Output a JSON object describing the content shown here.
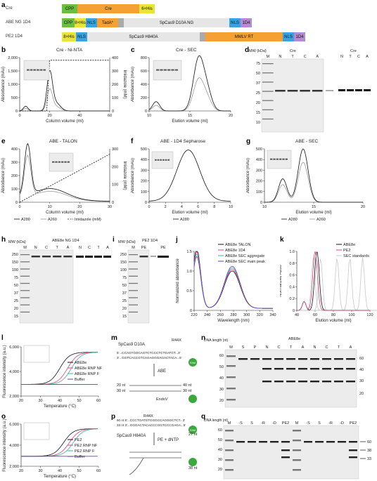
{
  "panels": {
    "a": "a",
    "b": "b",
    "c": "c",
    "d": "d",
    "e": "e",
    "f": "f",
    "g": "g",
    "h": "h",
    "i": "i",
    "j": "j",
    "k": "k",
    "l": "l",
    "m": "m",
    "n": "n",
    "o": "o",
    "p": "p",
    "q": "q"
  },
  "constructs": [
    {
      "name": "Cre",
      "domains": [
        {
          "label": "CPP",
          "color": "#6abf3e"
        },
        {
          "label": "Cre",
          "color": "#f5a033"
        },
        {
          "label": "6×His",
          "color": "#e8e43a"
        }
      ]
    },
    {
      "name": "ABE NG 1D4",
      "domains": [
        {
          "label": "CPP",
          "color": "#6abf3e"
        },
        {
          "label": "8×His",
          "color": "#e8e43a"
        },
        {
          "label": "NLS",
          "color": "#3aa2dc"
        },
        {
          "label": "TadA*",
          "color": "#f5a033"
        },
        {
          "label": "",
          "color": "#aaa"
        },
        {
          "label": "SpCas9 D10A NG",
          "color": "#e6e6e6"
        },
        {
          "label": "NLS",
          "color": "#3aa2dc"
        },
        {
          "label": "1D4",
          "color": "#b58ad0"
        }
      ]
    },
    {
      "name": "PE2 1D4",
      "domains": [
        {
          "label": "8×His",
          "color": "#e8e43a"
        },
        {
          "label": "NLS",
          "color": "#3aa2dc"
        },
        {
          "label": "SpCas9 H840A",
          "color": "#e6e6e6"
        },
        {
          "label": "",
          "color": "#aaa"
        },
        {
          "label": "MMLV RT",
          "color": "#f5a033"
        },
        {
          "label": "NLS",
          "color": "#3aa2dc"
        },
        {
          "label": "1D4",
          "color": "#b58ad0"
        }
      ]
    }
  ],
  "titles": {
    "b": "Cre - Ni-NTA",
    "c": "Cre - SEC",
    "d": "Cre",
    "e": "ABE - TALON",
    "f": "ABE - 1D4 Sepharose",
    "g": "ABE - SEC",
    "h": "ABE8e NG 1D4",
    "i": "PE2 1D4",
    "n": "ABE8e"
  },
  "axes": {
    "absorbance": "Absorbance (mAu)",
    "imidazole": "Imidazole (mM)",
    "column_volume": "Column volume (ml)",
    "elution_volume": "Elution volume (ml)",
    "mw": "MW (kDa)",
    "norm_abs": "Normalized absorbance",
    "wavelength": "Wavelength (nm)",
    "norm_a280": "Normalized A280",
    "fluor": "Fluorescence intensity (a.u.)",
    "temp": "Temperature (°C)",
    "dna_length": "DNA length (nt)"
  },
  "legends": {
    "a280": "A280",
    "a260": "A260",
    "imid": "Imidazole (mM)",
    "j": [
      "ABE8e TALON",
      "ABE8e 1D4",
      "ABE8e SEC aggregate",
      "ABE8e SEC main peak"
    ],
    "k": [
      "ABE8e",
      "PE2",
      "SEC standards"
    ],
    "l": [
      "ABE8e",
      "ABE8e RNP NF",
      "ABE8e RNP F",
      "Buffer"
    ],
    "o": [
      "PE2",
      "PE2 RNP NF",
      "PE2 RNP F",
      "Buffer"
    ]
  },
  "lanes": {
    "d": [
      "M",
      "N",
      "T",
      "C",
      "A",
      "N",
      "T",
      "C",
      "A"
    ],
    "h": [
      "M",
      "N",
      "C",
      "T",
      "A",
      "N",
      "C",
      "T",
      "A"
    ],
    "i": [
      "M",
      "PE",
      "PE"
    ],
    "n": [
      "M",
      "S",
      "P",
      "N",
      "C",
      "T",
      "A",
      "N",
      "C",
      "T",
      "A"
    ],
    "q": [
      "M",
      "-S",
      "S",
      "-R",
      "-D",
      "PE2",
      "M",
      "-S",
      "S",
      "-R",
      "-D",
      "PE2"
    ]
  },
  "mw_ladder": [
    "250",
    "150",
    "100",
    "75",
    "50",
    "37",
    "25",
    "20",
    "15"
  ],
  "mw_ladder_d": [
    "75",
    "50",
    "37",
    "25",
    "20",
    "15",
    "10"
  ],
  "dna_n": [
    "60",
    "50",
    "40",
    "30",
    "20"
  ],
  "dna_q": [
    "60",
    "50",
    "40",
    "30",
    "20"
  ],
  "diagram_m": {
    "title": "SpCas9 D10A",
    "mutation": "R44X",
    "top": "5'...CCAGTGGCAGTCTCCCTCTGATGT...3'",
    "bottom": "3'...GGTCACCGTCAGAGGGAGACTACA...5'",
    "action": "ABE",
    "cut1": "20 nt",
    "cut2": "30 nt",
    "cut3": "40 nt",
    "cut4": "30 nt",
    "enzyme": "EndoV",
    "fam": "FAM"
  },
  "diagram_p": {
    "top": "60 nt 5'...CCCTGATGTGGGCCAGGGCTCT...3'",
    "bottom": "33 nt 3'...GGGACTACACCCGGTCCCGAGA...5'",
    "mutation": "R44X",
    "enzyme": "SpCas9 H840A",
    "action": "PE + dNTP",
    "l1": "27 nt",
    "l2": "38 nt",
    "fam": "FAM"
  },
  "arrows_q": [
    "60",
    "38",
    "33"
  ],
  "ticks": {
    "b_x": [
      "0",
      "20",
      "40",
      "60"
    ],
    "b_y": [
      "0",
      "500",
      "1,000",
      "1,500",
      "2,000"
    ],
    "b_y2": [
      "0",
      "100",
      "200",
      "300",
      "400"
    ],
    "c_x": [
      "10",
      "15",
      "20"
    ],
    "c_y": [
      "0",
      "200",
      "400",
      "600",
      "800"
    ],
    "e_x": [
      "0",
      "10",
      "20",
      "30"
    ],
    "e_y": [
      "0",
      "100",
      "200",
      "300",
      "400"
    ],
    "e_y2": [
      "0",
      "100",
      "200",
      "300"
    ],
    "f_x": [
      "0",
      "2",
      "4",
      "6",
      "8",
      "10"
    ],
    "f_y": [
      "0",
      "100",
      "200",
      "300",
      "400",
      "500"
    ],
    "g_x": [
      "10",
      "15",
      "20"
    ],
    "g_y": [
      "0",
      "100",
      "200",
      "300",
      "400",
      "500"
    ],
    "j_x": [
      "220",
      "240",
      "260",
      "280",
      "300",
      "320",
      "340"
    ],
    "j_y": [
      "0",
      "0.5",
      "1.0",
      "1.5"
    ],
    "k_x": [
      "40",
      "60",
      "80",
      "100",
      "120"
    ],
    "k_y": [
      "0",
      "0.2",
      "0.4",
      "0.6",
      "0.8",
      "1.0"
    ],
    "l_x": [
      "20",
      "30",
      "40",
      "50",
      "60"
    ],
    "l_y": [
      "2,000",
      "4,000",
      "6,000"
    ],
    "o_x": [
      "20",
      "30",
      "40",
      "50",
      "60"
    ],
    "o_y": [
      "2,000",
      "4,000",
      "6,000"
    ]
  },
  "colors": {
    "black": "#111",
    "grey": "#9a9a9a",
    "pink": "#e0457a",
    "teal": "#3ab0a0",
    "purple": "#6a3ab8",
    "lightgrey": "#c8c8c8"
  }
}
